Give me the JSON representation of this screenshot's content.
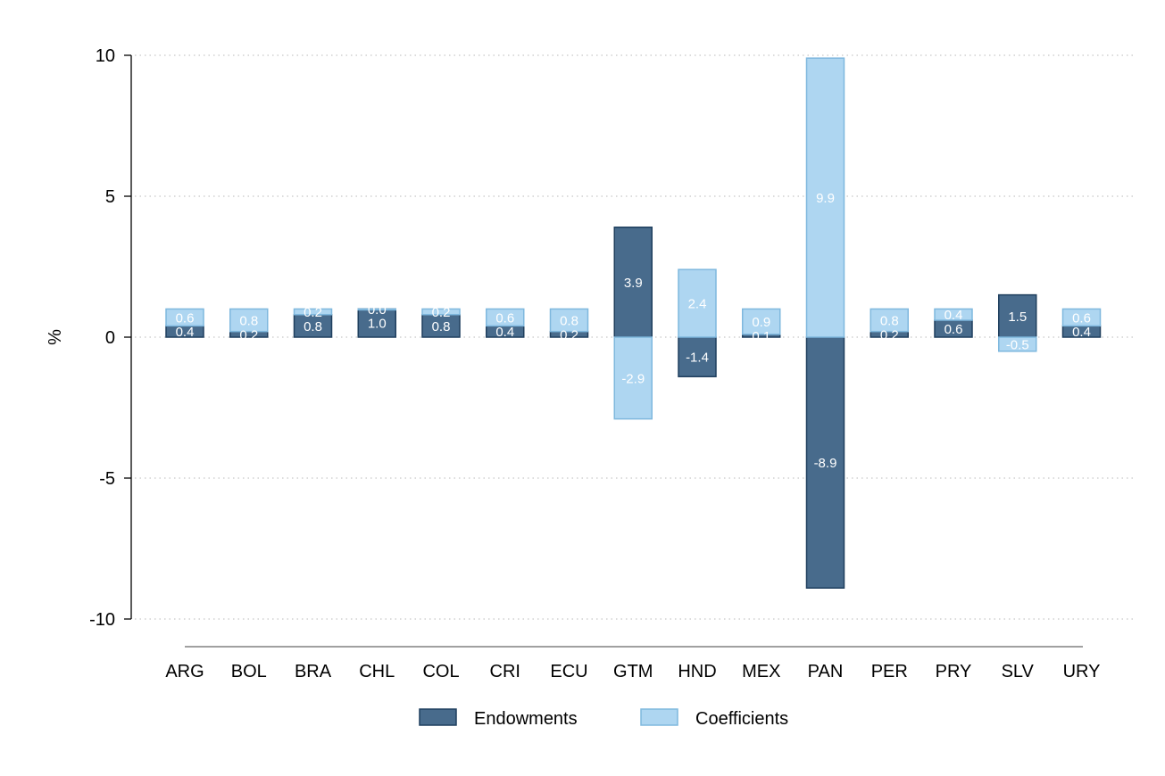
{
  "chart_data": {
    "type": "bar",
    "stacked": true,
    "title": "",
    "xlabel": "",
    "ylabel": "%",
    "ylim": [
      -10,
      10
    ],
    "yticks": [
      10,
      5,
      0,
      -5,
      -10
    ],
    "yticklabels": [
      "10",
      "5",
      "0",
      "-5",
      "-10"
    ],
    "grid": true,
    "legend_position": "bottom",
    "categories": [
      "ARG",
      "BOL",
      "BRA",
      "CHL",
      "COL",
      "CRI",
      "ECU",
      "GTM",
      "HND",
      "MEX",
      "PAN",
      "PER",
      "PRY",
      "SLV",
      "URY"
    ],
    "series": [
      {
        "name": "Endowments",
        "color": "#486b8c",
        "border": "#1f3f5e",
        "values": [
          0.4,
          0.2,
          0.8,
          1.0,
          0.8,
          0.4,
          0.2,
          3.9,
          -1.4,
          0.1,
          -8.9,
          0.2,
          0.6,
          1.5,
          0.4
        ],
        "labels": [
          "0.4",
          "0.2",
          "0.8",
          "1.0",
          "0.8",
          "0.4",
          "0.2",
          "3.9",
          "-1.4",
          "0.1",
          "-8.9",
          "0.2",
          "0.6",
          "1.5",
          "0.4"
        ]
      },
      {
        "name": "Coefficients",
        "color": "#aed6f1",
        "border": "#7fb8de",
        "values": [
          0.6,
          0.8,
          0.2,
          0.0,
          0.2,
          0.6,
          0.8,
          -2.9,
          2.4,
          0.9,
          9.9,
          0.8,
          0.4,
          -0.5,
          0.6
        ],
        "labels": [
          "0.6",
          "0.8",
          "0.2",
          "0.0",
          "0.2",
          "0.6",
          "0.8",
          "-2.9",
          "2.4",
          "0.9",
          "9.9",
          "0.8",
          "0.4",
          "-0.5",
          "0.6"
        ]
      }
    ]
  }
}
